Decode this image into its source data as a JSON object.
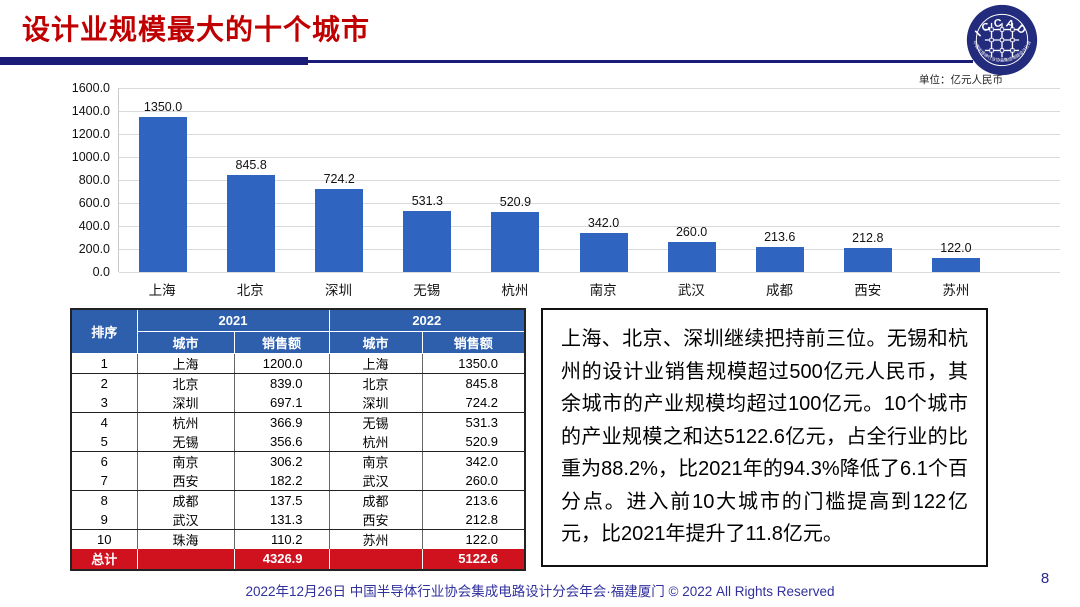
{
  "header": {
    "title": "设计业规模最大的十个城市",
    "unit_label": "单位：亿元人民币",
    "logo": {
      "text": "ICCAD",
      "org": "中国半导体行业协会集成电路设计分会"
    }
  },
  "chart_data": {
    "type": "bar",
    "title": "",
    "xlabel": "",
    "ylabel": "",
    "unit": "亿元人民币",
    "categories": [
      "上海",
      "北京",
      "深圳",
      "无锡",
      "杭州",
      "南京",
      "武汉",
      "成都",
      "西安",
      "苏州"
    ],
    "values": [
      1350.0,
      845.8,
      724.2,
      531.3,
      520.9,
      342.0,
      260.0,
      213.6,
      212.8,
      122.0
    ],
    "value_labels": [
      "1350.0",
      "845.8",
      "724.2",
      "531.3",
      "520.9",
      "342.0",
      "260.0",
      "213.6",
      "212.8",
      "122.0"
    ],
    "ylim": [
      0,
      1600
    ],
    "ytick_step": 200,
    "yticks": [
      "1600.0",
      "1400.0",
      "1200.0",
      "1000.0",
      "800.0",
      "600.0",
      "400.0",
      "200.0",
      "0.0"
    ],
    "grid": true,
    "legend": false
  },
  "table": {
    "rank_header": "排序",
    "year_headers": [
      "2021",
      "2022"
    ],
    "sub_headers": [
      "城市",
      "销售额"
    ],
    "rows": [
      {
        "rank": "1",
        "city_2021": "上海",
        "sales_2021": "1200.0",
        "city_2022": "上海",
        "sales_2022": "1350.0"
      },
      {
        "rank": "2",
        "city_2021": "北京",
        "sales_2021": "839.0",
        "city_2022": "北京",
        "sales_2022": "845.8"
      },
      {
        "rank": "3",
        "city_2021": "深圳",
        "sales_2021": "697.1",
        "city_2022": "深圳",
        "sales_2022": "724.2"
      },
      {
        "rank": "4",
        "city_2021": "杭州",
        "sales_2021": "366.9",
        "city_2022": "无锡",
        "sales_2022": "531.3"
      },
      {
        "rank": "5",
        "city_2021": "无锡",
        "sales_2021": "356.6",
        "city_2022": "杭州",
        "sales_2022": "520.9"
      },
      {
        "rank": "6",
        "city_2021": "南京",
        "sales_2021": "306.2",
        "city_2022": "南京",
        "sales_2022": "342.0"
      },
      {
        "rank": "7",
        "city_2021": "西安",
        "sales_2021": "182.2",
        "city_2022": "武汉",
        "sales_2022": "260.0"
      },
      {
        "rank": "8",
        "city_2021": "成都",
        "sales_2021": "137.5",
        "city_2022": "成都",
        "sales_2022": "213.6"
      },
      {
        "rank": "9",
        "city_2021": "武汉",
        "sales_2021": "131.3",
        "city_2022": "西安",
        "sales_2022": "212.8"
      },
      {
        "rank": "10",
        "city_2021": "珠海",
        "sales_2021": "110.2",
        "city_2022": "苏州",
        "sales_2022": "122.0"
      }
    ],
    "total": {
      "label": "总计",
      "sales_2021": "4326.9",
      "sales_2022": "5122.6"
    }
  },
  "commentary": {
    "text": "上海、北京、深圳继续把持前三位。无锡和杭州的设计业销售规模超过500亿元人民币，其余城市的产业规模均超过100亿元。10个城市的产业规模之和达5122.6亿元，占全行业的比重为88.2%，比2021年的94.3%降低了6.1个百分点。进入前10大城市的门槛提高到122亿元，比2021年提升了11.8亿元。"
  },
  "footer": {
    "text": "2022年12月26日 中国半导体行业协会集成电路设计分会年会·福建厦门 © 2022 All Rights Reserved",
    "page_number": "8"
  },
  "colors": {
    "title_red": "#C00000",
    "rule_navy": "#1B1B78",
    "bar_blue": "#2F64C0",
    "header_blue": "#2E5FAC",
    "total_red": "#D0121F",
    "footer_navy": "#30309E",
    "grid_gray": "#DADADA"
  }
}
